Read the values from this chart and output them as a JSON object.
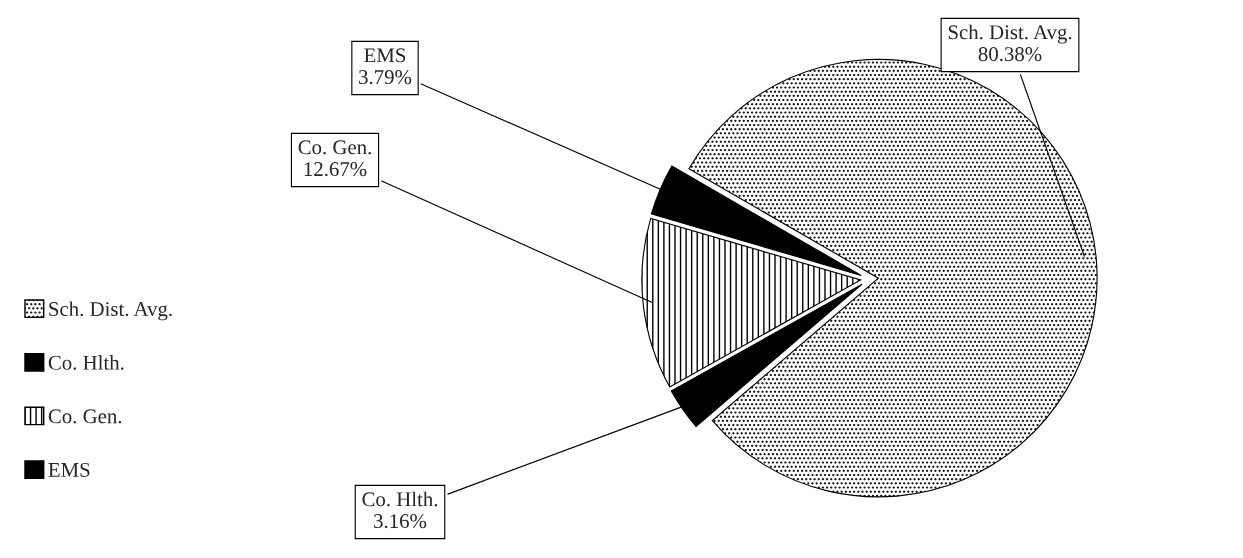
{
  "chart_data": {
    "type": "pie",
    "categories": [
      "Sch. Dist. Avg.",
      "Co. Hlth.",
      "Co. Gen.",
      "EMS"
    ],
    "values": [
      80.38,
      3.16,
      12.67,
      3.79
    ],
    "colors": [
      "#000000",
      "#000000",
      "#000000",
      "#000000"
    ],
    "value_labels": [
      "80.38%",
      "3.16%",
      "12.67%",
      "3.79%"
    ],
    "legend": "left"
  }
}
